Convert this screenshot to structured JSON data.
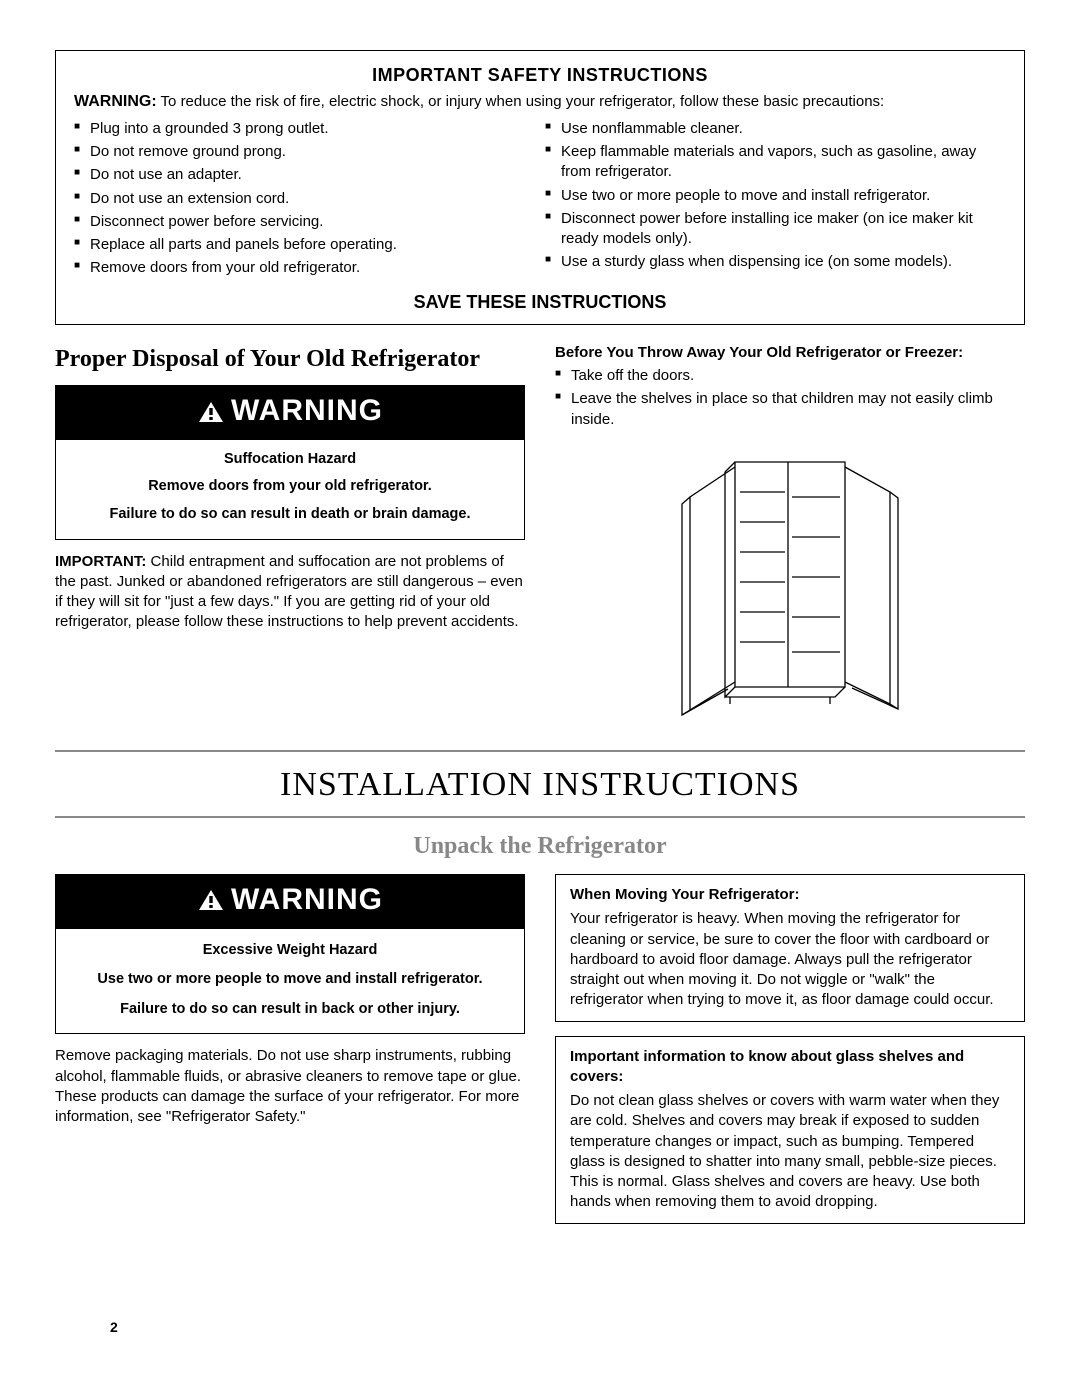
{
  "colors": {
    "text": "#000000",
    "bg": "#ffffff",
    "banner_bg": "#000000",
    "banner_text": "#ffffff",
    "rule": "#888888",
    "unpack_heading": "#888888"
  },
  "safety": {
    "title": "IMPORTANT SAFETY INSTRUCTIONS",
    "lead_bold": "WARNING:",
    "lead_text": " To reduce the risk of fire, electric shock, or injury when using your refrigerator, follow these basic precautions:",
    "left_items": [
      "Plug into a grounded 3 prong outlet.",
      "Do not remove ground prong.",
      "Do not use an adapter.",
      "Do not use an extension cord.",
      "Disconnect power before servicing.",
      "Replace all parts and panels before operating.",
      "Remove doors from your old refrigerator."
    ],
    "right_items": [
      "Use nonflammable cleaner.",
      "Keep flammable materials and vapors, such as gasoline, away from refrigerator.",
      "Use two or more people to move and install refrigerator.",
      "Disconnect power before installing ice maker (on ice maker kit ready models only).",
      "Use a sturdy glass when dispensing ice (on some models)."
    ],
    "save": "SAVE THESE INSTRUCTIONS"
  },
  "disposal": {
    "heading": "Proper Disposal of Your Old Refrigerator",
    "banner": "WARNING",
    "hazard_title": "Suffocation Hazard",
    "hazard_line1": "Remove doors from your old refrigerator.",
    "hazard_line2": "Failure to do so can result in death or brain damage.",
    "important_bold": "IMPORTANT:",
    "important_text": " Child entrapment and suffocation are not problems of the past. Junked or abandoned refrigerators are still dangerous – even if they will sit for \"just a few days.\" If you are getting rid of your old refrigerator, please follow these instructions to help prevent accidents.",
    "before_heading": "Before You Throw Away Your Old Refrigerator or Freezer:",
    "before_items": [
      "Take off the doors.",
      "Leave the shelves in place so that children may not easily climb inside."
    ]
  },
  "install": {
    "title": "INSTALLATION INSTRUCTIONS",
    "unpack": "Unpack the Refrigerator"
  },
  "excessive": {
    "banner": "WARNING",
    "hazard_title": "Excessive Weight Hazard",
    "hazard_line1": "Use two or more people to move and install refrigerator.",
    "hazard_line2": "Failure to do so can result in back or other injury.",
    "body": "Remove packaging materials. Do not use sharp instruments, rubbing alcohol, flammable fluids, or abrasive cleaners to remove tape or glue. These products can damage the surface of your refrigerator. For more information, see \"Refrigerator Safety.\""
  },
  "moving": {
    "heading": "When Moving Your Refrigerator:",
    "body": "Your refrigerator is heavy. When moving the refrigerator for cleaning or service, be sure to cover the floor with cardboard or hardboard to avoid floor damage. Always pull the refrigerator straight out when moving it. Do not wiggle or \"walk\" the refrigerator when trying to move it, as floor damage could occur."
  },
  "glass": {
    "heading": "Important information to know about glass shelves and covers:",
    "body": "Do not clean glass shelves or covers with warm water when they are cold. Shelves and covers may break if exposed to sudden temperature changes or impact, such as bumping. Tempered glass is designed to shatter into many small, pebble-size pieces. This is normal. Glass shelves and covers are heavy. Use both hands when removing them to avoid dropping."
  },
  "page_number": "2"
}
